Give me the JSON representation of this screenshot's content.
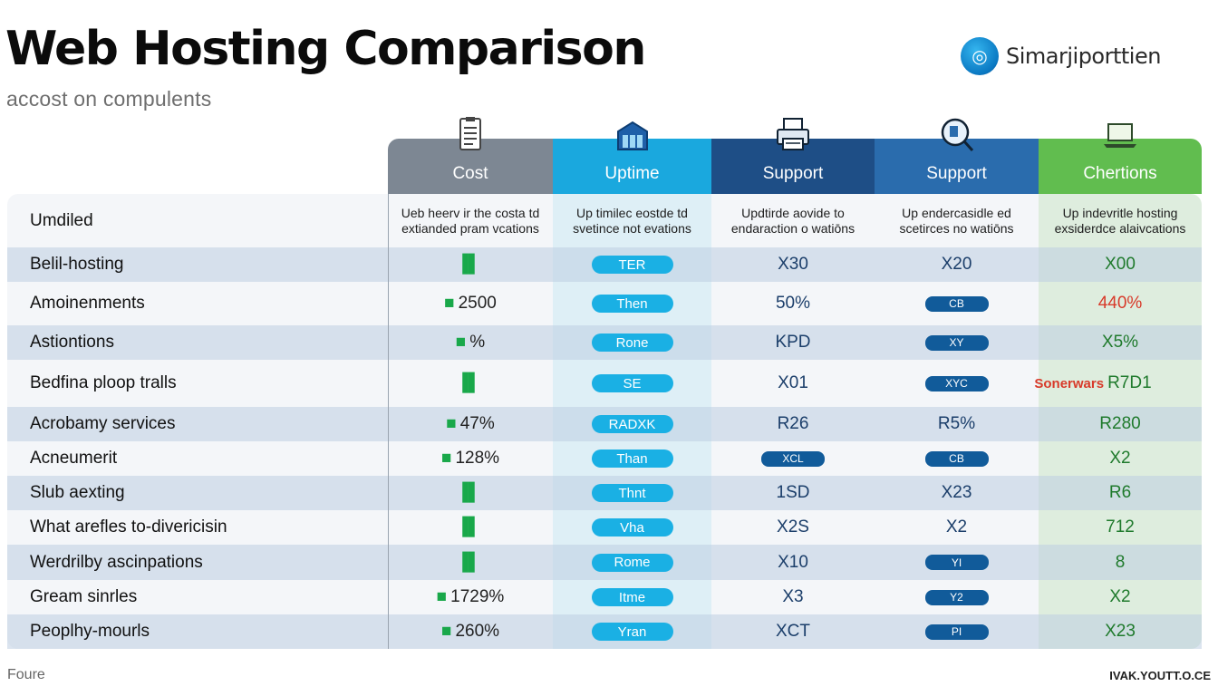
{
  "title": "Web Hosting Comparison",
  "subtitle": "accost on compulents",
  "brand": {
    "name": "Simarjiporttien",
    "logo_icon": "globe-icon"
  },
  "columns": [
    {
      "label": "Cost",
      "icon": "clipboard-icon",
      "color": "#7d8793"
    },
    {
      "label": "Uptime",
      "icon": "server-icon",
      "color": "#1aa8de"
    },
    {
      "label": "Support",
      "icon": "printer-icon",
      "color": "#1e4e86"
    },
    {
      "label": "Support",
      "icon": "magnifier-icon",
      "color": "#2a6cad"
    },
    {
      "label": "Chertions",
      "icon": "laptop-icon",
      "color": "#61bd4f"
    }
  ],
  "header_row": {
    "feature": "Umdiled",
    "cells": [
      [
        "Ueb heerv ir the costa td",
        "extianded pram vcations"
      ],
      [
        "Up timilec eostde td",
        "svetince not evations"
      ],
      [
        "Updtirde aovide to",
        "endaraction o watiōns"
      ],
      [
        "Up endercasidle ed",
        "scetirces no watiōns"
      ],
      [
        "Up indevritle hosting",
        "exsiderdce alaivcations"
      ]
    ]
  },
  "rows": [
    {
      "feature": "Belil-hosting",
      "cost": "",
      "uptime": "TER",
      "support": "X30",
      "support2": "X20",
      "support2_pill": false,
      "cert": "X00"
    },
    {
      "feature": "Amoinenments",
      "cost": "2500",
      "uptime": "Then",
      "support": "50%",
      "support2": "CB",
      "support2_pill": true,
      "cert": "440%"
    },
    {
      "feature": "Astiontions",
      "cost": "%",
      "uptime": "Rone",
      "support": "KPD",
      "support2": "XY",
      "support2_pill": true,
      "cert": "X5%"
    },
    {
      "feature": "Bedfina ploop tralls",
      "cost": "",
      "uptime": "SE",
      "support": "X01",
      "support2": "XYC",
      "support2_pill": true,
      "cert": "R7D1",
      "cert_prefix": "Sonerwars"
    },
    {
      "feature": "Acrobamy services",
      "cost": "47%",
      "uptime": "RADXK",
      "support": "R26",
      "support2": "R5%",
      "support2_pill": false,
      "cert": "R280"
    },
    {
      "feature": "Acneumerit",
      "cost": "128%",
      "uptime": "Than",
      "support": "XCL",
      "support_pill": true,
      "support2": "CB",
      "support2_pill": true,
      "cert": "X2"
    },
    {
      "feature": "Slub aexting",
      "cost": "",
      "uptime": "Thnt",
      "support": "1SD",
      "support2": "X23",
      "support2_pill": false,
      "cert": "R6"
    },
    {
      "feature": "What arefles to-divericisin",
      "cost": "",
      "uptime": "Vha",
      "support": "X2S",
      "support2": "X2",
      "support2_pill": false,
      "cert": "712"
    },
    {
      "feature": "Werdrilby ascinpations",
      "cost": "",
      "uptime": "Rome",
      "support": "X10",
      "support2": "YI",
      "support2_pill": true,
      "cert": "8"
    },
    {
      "feature": "Gream sinrles",
      "cost": "1729%",
      "uptime": "Itme",
      "support": "X3",
      "support2": "Y2",
      "support2_pill": true,
      "cert": "X2"
    },
    {
      "feature": "Peoplhy-mourls",
      "cost": "260%",
      "uptime": "Yran",
      "support": "XCT",
      "support2": "PI",
      "support2_pill": true,
      "cert": "X23"
    }
  ],
  "footer_left": "Foure",
  "footer_right": "IVAK.YOUTT.O.CE"
}
